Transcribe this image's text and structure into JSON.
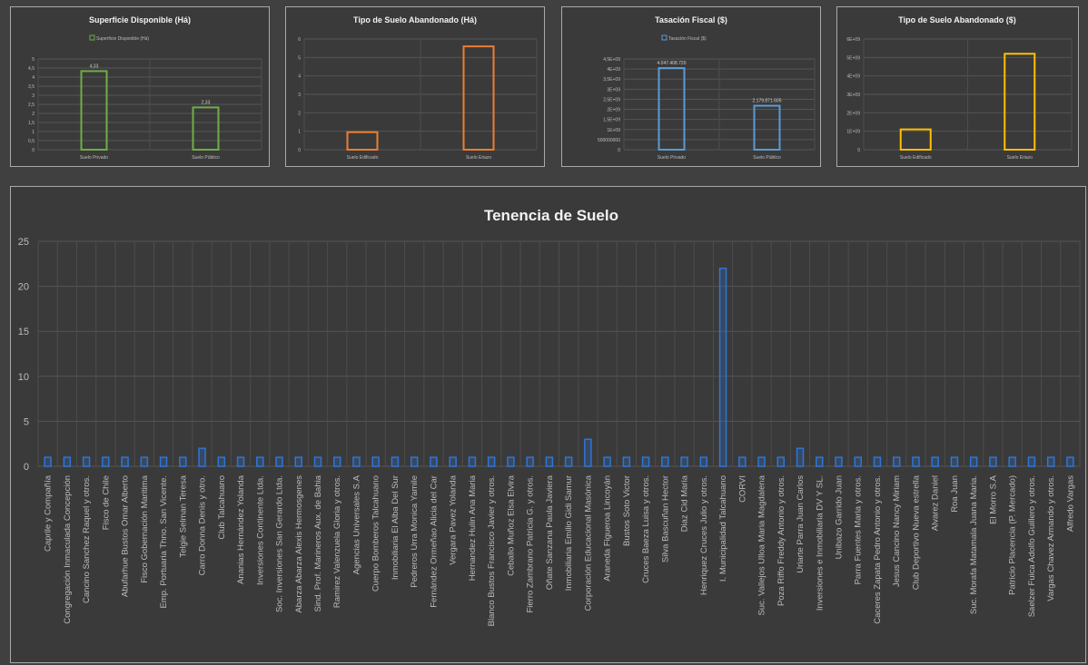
{
  "chart_data": [
    {
      "id": "p1",
      "type": "bar",
      "title": "Superficie Disponible (Há)",
      "legend": [
        "Superficie Disponible (Há)"
      ],
      "categories": [
        "Suelo Privado",
        "Suelo Público"
      ],
      "values": [
        4.33,
        2.33
      ],
      "data_labels": [
        "4,33",
        "2,33"
      ],
      "yticks": [
        "0",
        "0,5",
        "1",
        "1,5",
        "2",
        "2,5",
        "3",
        "3,5",
        "4",
        "4,5",
        "5"
      ],
      "ylim": [
        0,
        5
      ],
      "color": "#70ad47",
      "grid": true
    },
    {
      "id": "p2",
      "type": "bar",
      "title": "Tipo de Suelo Abandonado (Há)",
      "categories": [
        "Suelo Edificado",
        "Suelo Eriazo"
      ],
      "values": [
        0.95,
        5.6
      ],
      "yticks": [
        "0",
        "1",
        "2",
        "3",
        "4",
        "5",
        "6"
      ],
      "ylim": [
        0,
        6
      ],
      "color": "#ed7d31",
      "grid": true
    },
    {
      "id": "p3",
      "type": "bar",
      "title": "Tasación Fiscal ($)",
      "legend": [
        "Tasación Fiscal ($)"
      ],
      "categories": [
        "Suelo Privado",
        "Suelo Público"
      ],
      "values": [
        4047408720,
        2179871605
      ],
      "data_labels": [
        "4.047.408.720",
        "2.179.871.605"
      ],
      "yticks": [
        "0",
        "500000000",
        "1E+09",
        "1,5E+09",
        "2E+09",
        "2,5E+09",
        "3E+09",
        "3,5E+09",
        "4E+09",
        "4,5E+09"
      ],
      "ylim": [
        0,
        4500000000
      ],
      "color": "#5b9bd5",
      "grid": true
    },
    {
      "id": "p4",
      "type": "bar",
      "title": "Tipo de Suelo Abandonado ($)",
      "categories": [
        "Suelo Edificado",
        "Suelo Eriazo"
      ],
      "values": [
        1100000000,
        5200000000
      ],
      "yticks": [
        "0",
        "1E+09",
        "2E+09",
        "3E+09",
        "4E+09",
        "5E+09",
        "6E+09"
      ],
      "ylim": [
        0,
        6000000000
      ],
      "color": "#ffc000",
      "grid": true
    },
    {
      "id": "p5",
      "type": "bar",
      "title": "Tenencia de Suelo",
      "categories": [
        "Caprile y Compañía",
        "Congregación Inmaculada Concepción",
        "Cancino Sanchez Raquel y otros.",
        "Fisco de Chile",
        "Abufarhue Bustos Omar Alberto",
        "Fisco Gobernación Maritima",
        "Emp. Portuaria Thno. San Vicente.",
        "Telgie Selman Teresa",
        "Carro Donna Denis y otro.",
        "Club Talcahuano",
        "Ananias Hernández Yolanda",
        "Inversiones Continente Ltda.",
        "Soc. Inversiones San Gerardo Ltda.",
        "Abarza Abarza Alexis Hermosgenes",
        "Sind. Prof. Marineros Aux. de Bahia",
        "Ramirez Valenzuela Gloria y otros.",
        "Agencias Universales S.A",
        "Cuerpo Bomberos Talcahuano",
        "Inmobiliaria El Alba Del Sur",
        "Pedreros Urra Monica Yamile",
        "Fernández Ormeñao Alicia del Car",
        "Vergara Pavez Yolanda",
        "Hernandez Hulin Ana Maria",
        "Blanco Bustos Francisco Javier y otros.",
        "Ceballo Muñoz Elsa Elvira",
        "Fierro Zambrano Patricia G. y otros.",
        "Oñate Sanzana Paula Javiera",
        "Inmobiliaria Emilio Gidi Samur",
        "Corporación Educacional Masónica",
        "Araneda Figueroa Lincoyán",
        "Bustos Soto Victor",
        "Cruces Baeza Luisa y otros.",
        "Silva Bascuñan Hector",
        "Diaz Cid Maria",
        "Henriquez Cruces Julio y otros.",
        "I. Municipalidad Talcahuano",
        "CORVI",
        "Suc. Vallejos Ulloa Maria Magdalena",
        "Poza Riffo Freddy Antonio y otros.",
        "Uriarte Parra Juan Carlos",
        "Inversiones e Inmobiliaria DV Y SL.",
        "Unibazo Garrido Juan",
        "Parra Fuentes Maria y otros.",
        "Caceres Zapata Pedro Antonio y otros.",
        "Jesus Cancino Nancy Miriam",
        "Club Deportivo Nueva estrella",
        "Alvarez Daniel",
        "Roa Juan",
        "Suc. Morafa Matamala Juana Maria.",
        "El Morro S.A",
        "Patricio Placencia (P. Mercado)",
        "Saelzer Fuica Adolfo Guillero y otros.",
        "Vargas Chavez Armando y otros.",
        "Alfredo Vargas"
      ],
      "values": [
        1,
        1,
        1,
        1,
        1,
        1,
        1,
        1,
        2,
        1,
        1,
        1,
        1,
        1,
        1,
        1,
        1,
        1,
        1,
        1,
        1,
        1,
        1,
        1,
        1,
        1,
        1,
        1,
        3,
        1,
        1,
        1,
        1,
        1,
        1,
        22,
        1,
        1,
        1,
        2,
        1,
        1,
        1,
        1,
        1,
        1,
        1,
        1,
        1,
        1,
        1,
        1,
        1,
        1
      ],
      "yticks": [
        "0",
        "5",
        "10",
        "15",
        "20",
        "25"
      ],
      "ylim": [
        0,
        25
      ],
      "color": "#2e75d6",
      "grid": true
    }
  ]
}
